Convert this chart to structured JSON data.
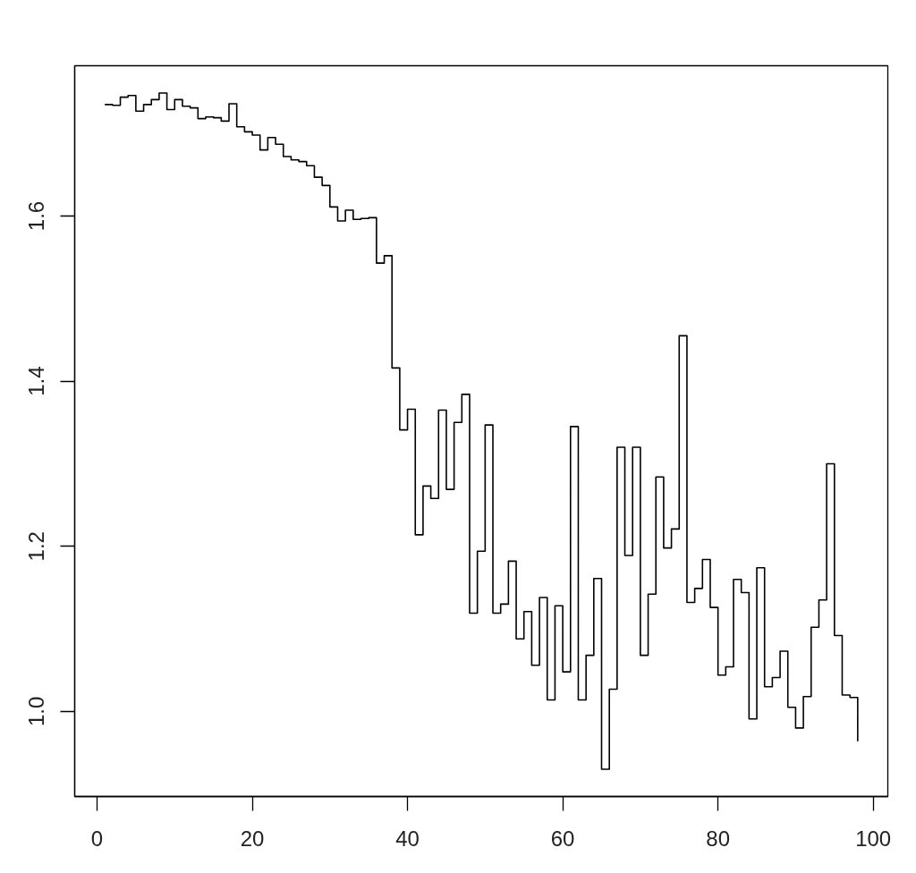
{
  "chart_data": {
    "type": "step",
    "x": [
      1,
      2,
      3,
      4,
      5,
      6,
      7,
      8,
      9,
      10,
      11,
      12,
      13,
      14,
      15,
      16,
      17,
      18,
      19,
      20,
      21,
      22,
      23,
      24,
      25,
      26,
      27,
      28,
      29,
      30,
      31,
      32,
      33,
      34,
      35,
      36,
      37,
      38,
      39,
      40,
      41,
      42,
      43,
      44,
      45,
      46,
      47,
      48,
      49,
      50,
      51,
      52,
      53,
      54,
      55,
      56,
      57,
      58,
      59,
      60,
      61,
      62,
      63,
      64,
      65,
      66,
      67,
      68,
      69,
      70,
      71,
      72,
      73,
      74,
      75,
      76,
      77,
      78,
      79,
      80,
      81,
      82,
      83,
      84,
      85,
      86,
      87,
      88,
      89,
      90,
      91,
      92,
      93,
      94,
      95,
      96,
      97,
      98
    ],
    "values": [
      1.735,
      1.734,
      1.744,
      1.746,
      1.727,
      1.735,
      1.741,
      1.749,
      1.729,
      1.741,
      1.733,
      1.731,
      1.718,
      1.72,
      1.719,
      1.715,
      1.736,
      1.708,
      1.702,
      1.698,
      1.68,
      1.695,
      1.687,
      1.672,
      1.668,
      1.666,
      1.661,
      1.647,
      1.637,
      1.611,
      1.594,
      1.607,
      1.596,
      1.597,
      1.598,
      1.543,
      1.552,
      1.416,
      1.341,
      1.366,
      1.214,
      1.273,
      1.258,
      1.365,
      1.269,
      1.35,
      1.384,
      1.119,
      1.194,
      1.347,
      1.119,
      1.13,
      1.182,
      1.088,
      1.121,
      1.056,
      1.138,
      1.014,
      1.128,
      1.048,
      1.345,
      1.014,
      1.068,
      1.161,
      0.93,
      1.027,
      1.32,
      1.189,
      1.32,
      1.068,
      1.142,
      1.284,
      1.198,
      1.221,
      1.455,
      1.132,
      1.149,
      1.184,
      1.126,
      1.044,
      1.054,
      1.16,
      1.144,
      0.991,
      1.174,
      1.03,
      1.041,
      1.073,
      1.005,
      0.98,
      1.018,
      1.102,
      1.135,
      1.3,
      1.092,
      1.02,
      1.017,
      0.964
    ],
    "color": "#000000",
    "xlim": [
      -2.88,
      101.88
    ],
    "ylim": [
      0.897,
      1.782
    ],
    "xticks": [
      0,
      20,
      40,
      60,
      80,
      100
    ],
    "yticks": [
      {
        "value": 1,
        "label": "1.0"
      },
      1.2,
      1.4,
      1.6
    ],
    "grid": false
  }
}
